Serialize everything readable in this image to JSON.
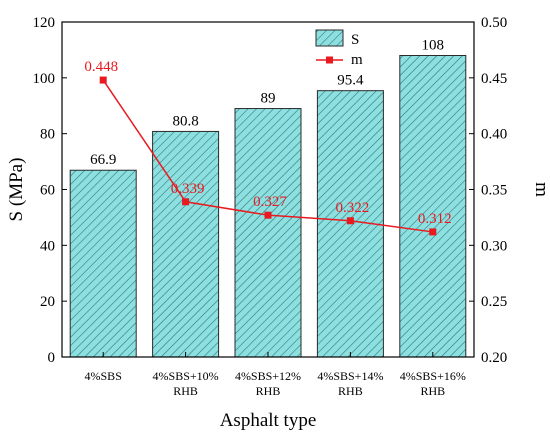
{
  "chart_data": {
    "type": "bar",
    "categories": [
      "4%SBS",
      "4%SBS+10%\nRHB",
      "4%SBS+12%\nRHB",
      "4%SBS+14%\nRHB",
      "4%SBS+16%\nRHB"
    ],
    "series": [
      {
        "name": "S",
        "type": "bar",
        "axis": "left",
        "values": [
          66.9,
          80.8,
          89,
          95.4,
          108
        ]
      },
      {
        "name": "m",
        "type": "line",
        "axis": "right",
        "values": [
          0.448,
          0.339,
          0.327,
          0.322,
          0.312
        ]
      }
    ],
    "bar_labels": [
      "66.9",
      "80.8",
      "89",
      "95.4",
      "108"
    ],
    "line_labels": [
      "0.448",
      "0.339",
      "0.327",
      "0.322",
      "0.312"
    ],
    "xlabel": "Asphalt type",
    "ylabel": "S (MPa)",
    "y2label": "m",
    "ylim": [
      0,
      120
    ],
    "y2lim": [
      0.2,
      0.5
    ],
    "yticks": [
      0,
      20,
      40,
      60,
      80,
      100,
      120
    ],
    "y2ticks": [
      "0.20",
      "0.25",
      "0.30",
      "0.35",
      "0.40",
      "0.45",
      "0.50"
    ],
    "legend_position": "top-center",
    "grid": false,
    "colors": {
      "bar_fill": "#8ee0e0",
      "bar_hatch": "#2a7a7a",
      "bar_edge": "#2a2a2a",
      "line": "#e8191f",
      "label_line": "#e8191f",
      "label_bar": "#000000"
    }
  }
}
